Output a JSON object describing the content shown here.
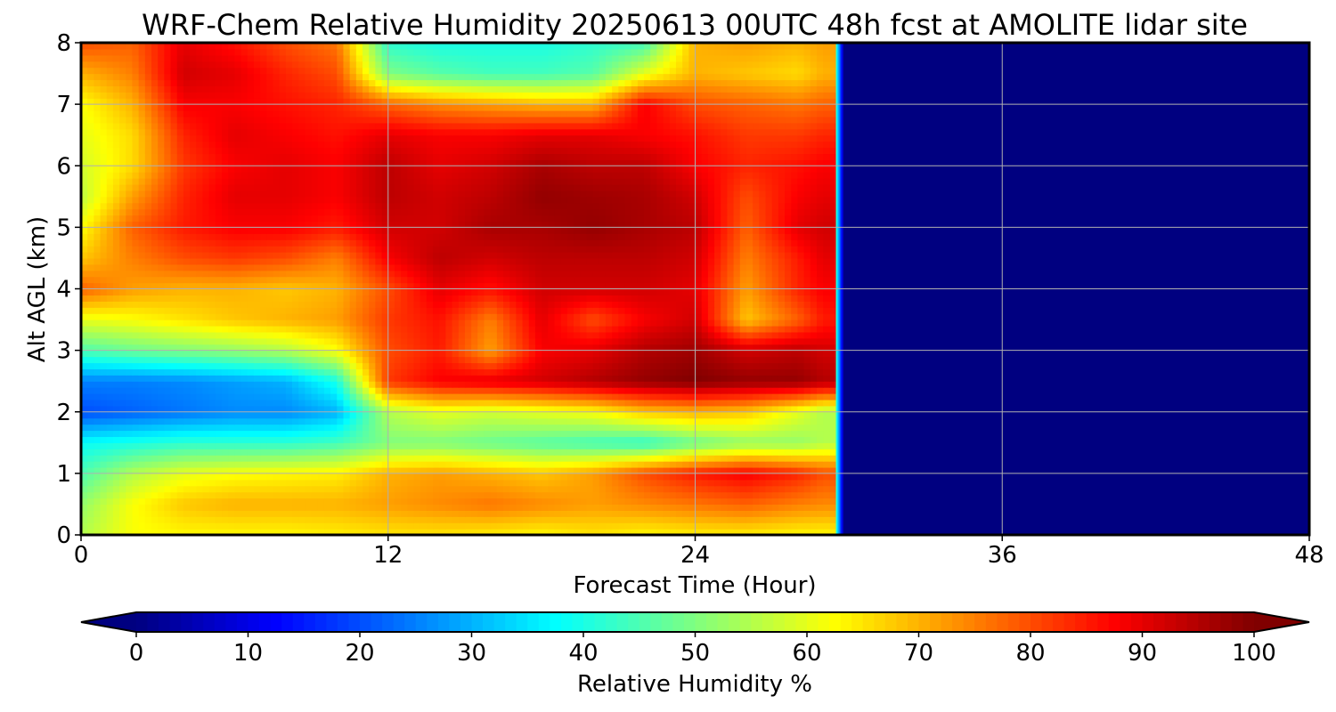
{
  "chart_data": {
    "type": "heatmap",
    "title": "WRF-Chem Relative Humidity 20250613 00UTC 48h fcst at AMOLITE lidar site",
    "xlabel": "Forecast Time (Hour)",
    "ylabel": "Alt AGL (km)",
    "xlim": [
      0,
      48
    ],
    "ylim": [
      0,
      8
    ],
    "xticks": [
      0,
      12,
      24,
      36,
      48
    ],
    "yticks": [
      0,
      1,
      2,
      3,
      4,
      5,
      6,
      7,
      8
    ],
    "grid": true,
    "colormap": "jet",
    "colorbar": {
      "label": "Relative Humidity %",
      "range": [
        0,
        100
      ],
      "ticks": [
        0,
        10,
        20,
        30,
        40,
        50,
        60,
        70,
        80,
        90,
        100
      ],
      "extend": "both",
      "orientation": "horizontal"
    },
    "data_valid_until_hour": 29.5,
    "fill_after_valid": 0,
    "x": [
      0,
      2,
      4,
      6,
      8,
      10,
      12,
      14,
      16,
      18,
      20,
      22,
      24,
      26,
      28,
      29
    ],
    "y": [
      0,
      0.5,
      1,
      1.5,
      2,
      2.5,
      3,
      3.5,
      4,
      4.5,
      5,
      5.5,
      6,
      6.5,
      7,
      7.5,
      8
    ],
    "rh": [
      [
        55,
        62,
        63,
        63,
        63,
        64,
        65,
        65,
        64,
        63,
        65,
        63,
        64,
        64,
        63,
        63
      ],
      [
        52,
        62,
        68,
        70,
        70,
        70,
        72,
        74,
        76,
        74,
        72,
        74,
        76,
        78,
        75,
        74
      ],
      [
        45,
        55,
        60,
        62,
        63,
        64,
        70,
        72,
        70,
        68,
        72,
        80,
        85,
        88,
        84,
        80
      ],
      [
        38,
        40,
        42,
        42,
        42,
        44,
        50,
        50,
        48,
        46,
        44,
        42,
        48,
        52,
        52,
        55
      ],
      [
        20,
        22,
        24,
        26,
        26,
        30,
        55,
        60,
        58,
        60,
        62,
        68,
        70,
        68,
        60,
        55
      ],
      [
        25,
        25,
        26,
        28,
        30,
        40,
        82,
        88,
        90,
        92,
        95,
        98,
        100,
        98,
        98,
        95
      ],
      [
        45,
        48,
        50,
        52,
        55,
        62,
        80,
        85,
        72,
        88,
        90,
        95,
        97,
        92,
        94,
        92
      ],
      [
        60,
        62,
        65,
        68,
        70,
        72,
        82,
        86,
        75,
        90,
        80,
        88,
        92,
        68,
        78,
        85
      ],
      [
        78,
        72,
        70,
        70,
        68,
        70,
        80,
        90,
        86,
        92,
        92,
        92,
        90,
        72,
        84,
        88
      ],
      [
        68,
        75,
        80,
        82,
        80,
        75,
        88,
        94,
        92,
        94,
        94,
        94,
        92,
        75,
        85,
        90
      ],
      [
        62,
        78,
        85,
        88,
        88,
        85,
        92,
        92,
        96,
        96,
        98,
        96,
        94,
        78,
        90,
        92
      ],
      [
        56,
        72,
        84,
        90,
        90,
        88,
        94,
        92,
        94,
        98,
        97,
        96,
        92,
        80,
        88,
        90
      ],
      [
        58,
        66,
        82,
        88,
        90,
        88,
        94,
        90,
        92,
        96,
        94,
        94,
        88,
        84,
        86,
        88
      ],
      [
        60,
        66,
        84,
        90,
        88,
        86,
        90,
        88,
        88,
        90,
        90,
        88,
        86,
        82,
        82,
        84
      ],
      [
        62,
        70,
        88,
        88,
        86,
        84,
        78,
        74,
        72,
        70,
        70,
        88,
        80,
        78,
        76,
        78
      ],
      [
        70,
        75,
        92,
        90,
        84,
        80,
        50,
        46,
        44,
        44,
        46,
        60,
        70,
        68,
        66,
        70
      ],
      [
        80,
        78,
        90,
        86,
        80,
        76,
        42,
        40,
        40,
        40,
        42,
        44,
        70,
        72,
        70,
        72
      ]
    ]
  }
}
